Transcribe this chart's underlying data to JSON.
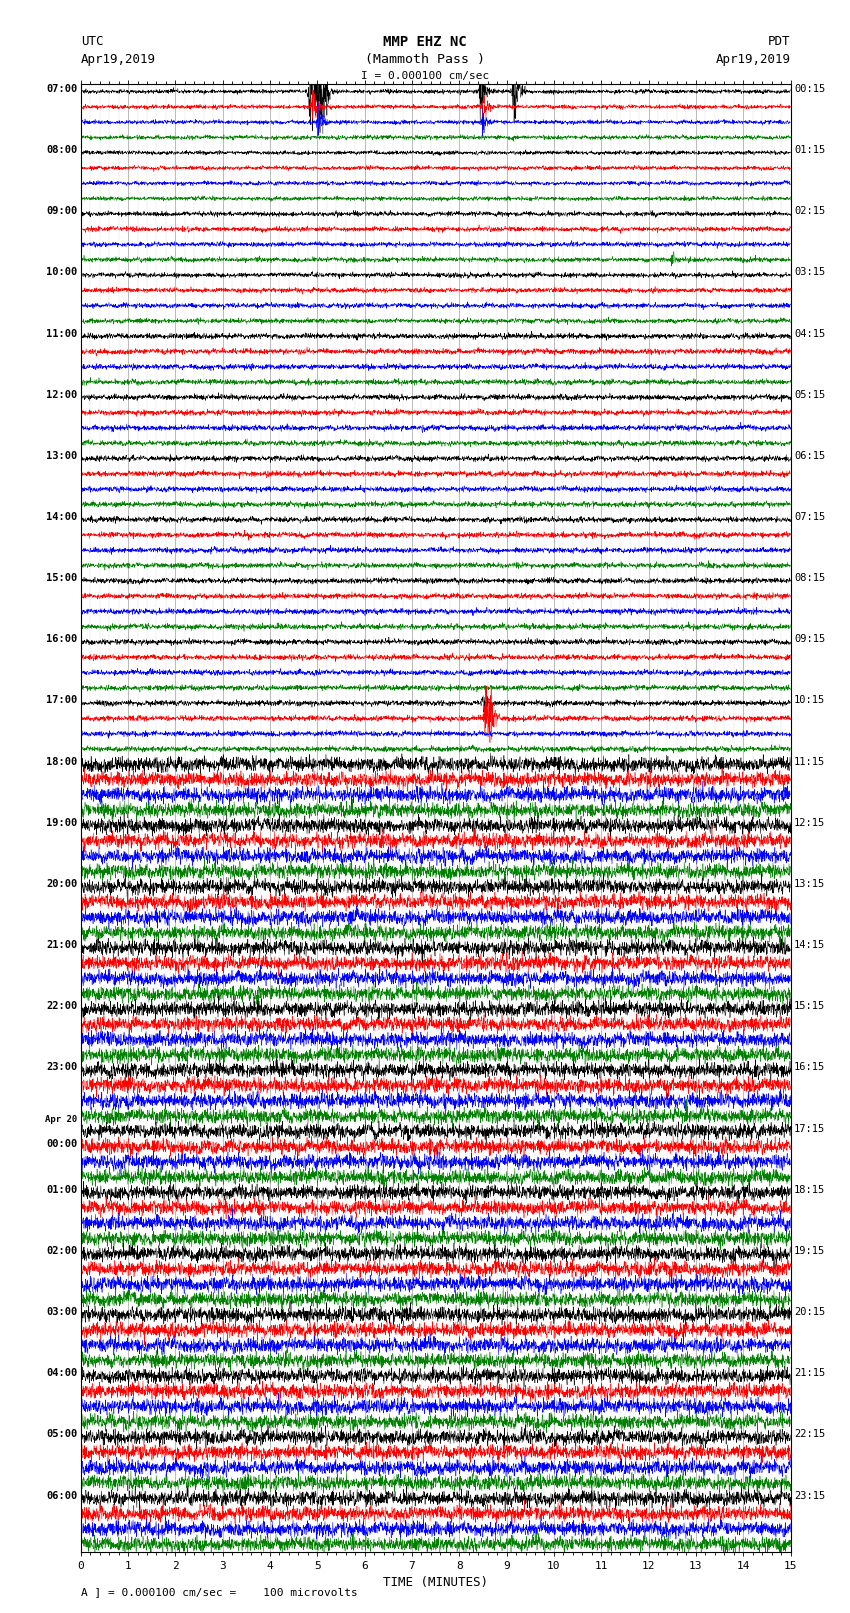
{
  "title_line1": "MMP EHZ NC",
  "title_line2": "(Mammoth Pass )",
  "scale_text": "I = 0.000100 cm/sec",
  "utc_label": "UTC",
  "utc_date": "Apr19,2019",
  "pdt_label": "PDT",
  "pdt_date": "Apr19,2019",
  "xlabel": "TIME (MINUTES)",
  "bottom_label": "A ] = 0.000100 cm/sec =    100 microvolts",
  "num_rows": 96,
  "xmin": 0,
  "xmax": 15,
  "colors_cycle": [
    "black",
    "red",
    "blue",
    "green"
  ],
  "background_color": "white",
  "fig_width": 8.5,
  "fig_height": 16.13,
  "utc_times": [
    "07:00",
    "",
    "",
    "",
    "08:00",
    "",
    "",
    "",
    "09:00",
    "",
    "",
    "",
    "10:00",
    "",
    "",
    "",
    "11:00",
    "",
    "",
    "",
    "12:00",
    "",
    "",
    "",
    "13:00",
    "",
    "",
    "",
    "14:00",
    "",
    "",
    "",
    "15:00",
    "",
    "",
    "",
    "16:00",
    "",
    "",
    "",
    "17:00",
    "",
    "",
    "",
    "18:00",
    "",
    "",
    "",
    "19:00",
    "",
    "",
    "",
    "20:00",
    "",
    "",
    "",
    "21:00",
    "",
    "",
    "",
    "22:00",
    "",
    "",
    "",
    "23:00",
    "",
    "",
    "",
    "Apr 20",
    "00:00",
    "",
    "",
    "01:00",
    "",
    "",
    "",
    "02:00",
    "",
    "",
    "",
    "03:00",
    "",
    "",
    "",
    "04:00",
    "",
    "",
    "",
    "05:00",
    "",
    "",
    "",
    "06:00",
    "",
    "",
    ""
  ],
  "pdt_times": [
    "00:15",
    "",
    "",
    "",
    "01:15",
    "",
    "",
    "",
    "02:15",
    "",
    "",
    "",
    "03:15",
    "",
    "",
    "",
    "04:15",
    "",
    "",
    "",
    "05:15",
    "",
    "",
    "",
    "06:15",
    "",
    "",
    "",
    "07:15",
    "",
    "",
    "",
    "08:15",
    "",
    "",
    "",
    "09:15",
    "",
    "",
    "",
    "10:15",
    "",
    "",
    "",
    "11:15",
    "",
    "",
    "",
    "12:15",
    "",
    "",
    "",
    "13:15",
    "",
    "",
    "",
    "14:15",
    "",
    "",
    "",
    "15:15",
    "",
    "",
    "",
    "16:15",
    "",
    "",
    "",
    "17:15",
    "",
    "",
    "",
    "18:15",
    "",
    "",
    "",
    "19:15",
    "",
    "",
    "",
    "20:15",
    "",
    "",
    "",
    "21:15",
    "",
    "",
    "",
    "22:15",
    "",
    "",
    "",
    "23:15",
    "",
    "",
    ""
  ],
  "noise_levels": {
    "0_to_8": 0.06,
    "8_to_16": 0.07,
    "16_to_44": 0.08,
    "44_to_96": 0.22
  },
  "event_rows": {
    "0": {
      "spikes": [
        {
          "t": 4.85,
          "amp": 3.2
        },
        {
          "t": 5.05,
          "amp": 2.8
        },
        {
          "t": 8.45,
          "amp": 1.5
        },
        {
          "t": 9.15,
          "amp": 1.8
        }
      ]
    },
    "1": {
      "spikes": [
        {
          "t": 4.9,
          "amp": 1.2
        },
        {
          "t": 8.5,
          "amp": 0.8
        }
      ]
    },
    "2": {
      "spikes": [
        {
          "t": 5.0,
          "amp": 0.8
        },
        {
          "t": 8.5,
          "amp": 0.5
        }
      ]
    },
    "11": {
      "spikes": [
        {
          "t": 12.5,
          "amp": 0.4
        }
      ]
    },
    "40": {
      "spikes": [
        {
          "t": 8.5,
          "amp": 0.6
        }
      ]
    },
    "41": {
      "spikes": [
        {
          "t": 8.55,
          "amp": 1.5
        },
        {
          "t": 8.65,
          "amp": 1.2
        }
      ]
    },
    "56": {
      "spikes": [
        {
          "t": 7.2,
          "amp": 0.5
        }
      ]
    }
  }
}
